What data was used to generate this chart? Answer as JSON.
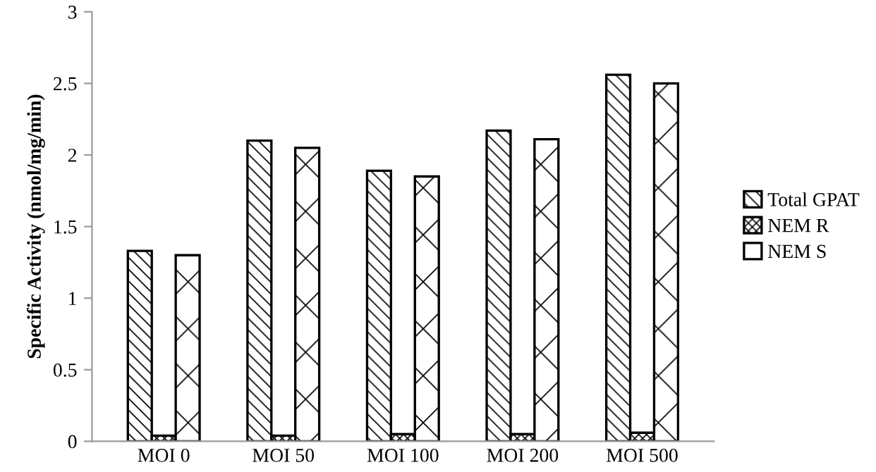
{
  "chart_data": {
    "type": "bar",
    "ylabel": "Specific Activity (nmol/mg/min)",
    "categories": [
      "MOI 0",
      "MOI 50",
      "MOI 100",
      "MOI 200",
      "MOI 500"
    ],
    "series": [
      {
        "name": "Total GPAT",
        "color": "#000000",
        "values": [
          1.33,
          2.1,
          1.89,
          2.17,
          2.56
        ]
      },
      {
        "name": "NEM R",
        "color": "#000000",
        "values": [
          0.04,
          0.04,
          0.05,
          0.05,
          0.06
        ]
      },
      {
        "name": "NEM S",
        "color": "#000000",
        "values": [
          1.3,
          2.05,
          1.85,
          2.11,
          2.5
        ]
      }
    ],
    "ylim": [
      0,
      3
    ],
    "yticks": [
      0,
      0.5,
      1,
      1.5,
      2,
      2.5,
      3
    ],
    "grid": false,
    "legend": "right"
  }
}
